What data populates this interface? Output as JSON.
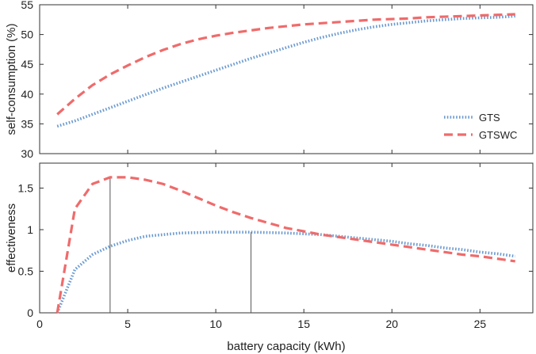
{
  "chart_data": [
    {
      "type": "line",
      "ylabel": "self-consumption (%)",
      "xlim": [
        0,
        28
      ],
      "ylim": [
        30,
        55
      ],
      "x_ticks": [
        0,
        5,
        10,
        15,
        20,
        25
      ],
      "y_ticks": [
        30,
        35,
        40,
        45,
        50,
        55
      ],
      "show_x_tick_labels": false,
      "grid": false,
      "legend": "right",
      "series": [
        {
          "name": "GTS",
          "style": "dotted",
          "color": "#6b9ad1",
          "x": [
            1,
            2,
            3,
            4,
            5,
            6,
            7,
            8,
            9,
            10,
            11,
            12,
            13,
            14,
            15,
            16,
            17,
            18,
            19,
            20,
            21,
            22,
            23,
            24,
            25,
            26,
            27
          ],
          "y": [
            34.6,
            35.5,
            36.6,
            37.7,
            38.8,
            39.9,
            41.0,
            42.0,
            43.0,
            44.0,
            45.0,
            46.0,
            46.9,
            47.8,
            48.7,
            49.5,
            50.2,
            50.8,
            51.3,
            51.7,
            52.0,
            52.3,
            52.5,
            52.7,
            52.8,
            52.9,
            53.1
          ]
        },
        {
          "name": "GTSWC",
          "style": "dashed",
          "color": "#ef6b6b",
          "x": [
            1,
            2,
            3,
            4,
            5,
            6,
            7,
            8,
            9,
            10,
            11,
            12,
            13,
            14,
            15,
            16,
            17,
            18,
            19,
            20,
            21,
            22,
            23,
            24,
            25,
            26,
            27
          ],
          "y": [
            36.6,
            39.2,
            41.5,
            43.3,
            44.8,
            46.2,
            47.4,
            48.4,
            49.2,
            49.8,
            50.3,
            50.7,
            51.1,
            51.4,
            51.7,
            51.9,
            52.1,
            52.3,
            52.5,
            52.6,
            52.7,
            52.9,
            53.0,
            53.1,
            53.2,
            53.3,
            53.4
          ]
        }
      ]
    },
    {
      "type": "line",
      "xlabel": "battery capacity (kWh)",
      "ylabel": "effectiveness",
      "xlim": [
        0,
        28
      ],
      "ylim": [
        0,
        1.8
      ],
      "x_ticks": [
        0,
        5,
        10,
        15,
        20,
        25
      ],
      "y_ticks": [
        0,
        0.5,
        1,
        1.5
      ],
      "y_tick_labels": [
        "0",
        "0.5",
        "1",
        "1.5"
      ],
      "grid": false,
      "vertical_markers": [
        {
          "series": "GTSWC",
          "x": 4,
          "y": 1.63
        },
        {
          "series": "GTS",
          "x": 12,
          "y": 0.97
        }
      ],
      "series": [
        {
          "name": "GTS",
          "style": "dotted",
          "color": "#6b9ad1",
          "x": [
            1,
            2,
            3,
            4,
            5,
            6,
            7,
            8,
            9,
            10,
            11,
            12,
            13,
            14,
            15,
            16,
            17,
            18,
            19,
            20,
            21,
            22,
            23,
            24,
            25,
            26,
            27
          ],
          "y": [
            0.0,
            0.52,
            0.7,
            0.8,
            0.87,
            0.92,
            0.94,
            0.96,
            0.965,
            0.97,
            0.97,
            0.97,
            0.965,
            0.96,
            0.95,
            0.94,
            0.92,
            0.9,
            0.88,
            0.86,
            0.83,
            0.81,
            0.78,
            0.76,
            0.73,
            0.71,
            0.68
          ]
        },
        {
          "name": "GTSWC",
          "style": "dashed",
          "color": "#ef6b6b",
          "x": [
            1,
            2,
            3,
            4,
            5,
            6,
            7,
            8,
            9,
            10,
            11,
            12,
            13,
            14,
            15,
            16,
            17,
            18,
            19,
            20,
            21,
            22,
            23,
            24,
            25,
            26,
            27
          ],
          "y": [
            0.0,
            1.25,
            1.55,
            1.63,
            1.63,
            1.6,
            1.55,
            1.47,
            1.38,
            1.29,
            1.21,
            1.14,
            1.08,
            1.02,
            0.98,
            0.94,
            0.91,
            0.88,
            0.85,
            0.82,
            0.79,
            0.76,
            0.73,
            0.7,
            0.68,
            0.65,
            0.62
          ]
        }
      ]
    }
  ]
}
